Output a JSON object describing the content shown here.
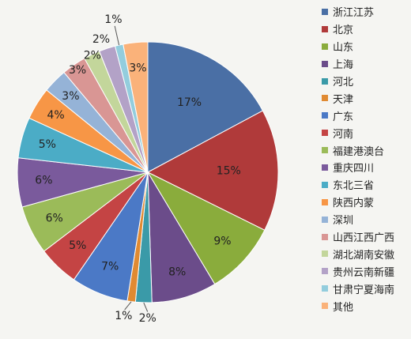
{
  "chart_data": {
    "type": "pie",
    "start_angle_deg": 0,
    "direction": "clockwise",
    "legend_position": "right",
    "slices": [
      {
        "label": "浙江江苏",
        "value": 17,
        "value_label": "17%",
        "color": "#4a6fa5"
      },
      {
        "label": "北京",
        "value": 15,
        "value_label": "15%",
        "color": "#b03a3a"
      },
      {
        "label": "山东",
        "value": 9,
        "value_label": "9%",
        "color": "#8aac3c"
      },
      {
        "label": "上海",
        "value": 8,
        "value_label": "8%",
        "color": "#6b4c8a"
      },
      {
        "label": "河北",
        "value": 2,
        "value_label": "2%",
        "color": "#3a9aa8"
      },
      {
        "label": "天津",
        "value": 1,
        "value_label": "1%",
        "color": "#e08a32"
      },
      {
        "label": "广东",
        "value": 7,
        "value_label": "7%",
        "color": "#4b79c6"
      },
      {
        "label": "河南",
        "value": 5,
        "value_label": "5%",
        "color": "#c44444"
      },
      {
        "label": "福建港澳台",
        "value": 6,
        "value_label": "6%",
        "color": "#9bbb59"
      },
      {
        "label": "重庆四川",
        "value": 6,
        "value_label": "6%",
        "color": "#7a5a9c"
      },
      {
        "label": "东北三省",
        "value": 5,
        "value_label": "5%",
        "color": "#4bacc6"
      },
      {
        "label": "陕西内蒙",
        "value": 4,
        "value_label": "4%",
        "color": "#f79646"
      },
      {
        "label": "深圳",
        "value": 3,
        "value_label": "3%",
        "color": "#95b3d7"
      },
      {
        "label": "山西江西广西",
        "value": 3,
        "value_label": "3%",
        "color": "#d99694"
      },
      {
        "label": "湖北湖南安徽",
        "value": 2,
        "value_label": "2%",
        "color": "#c3d69b"
      },
      {
        "label": "贵州云南新疆",
        "value": 2,
        "value_label": "2%",
        "color": "#b3a2c7"
      },
      {
        "label": "甘肃宁夏海南",
        "value": 1,
        "value_label": "1%",
        "color": "#93cddd"
      },
      {
        "label": "其他",
        "value": 3,
        "value_label": "3%",
        "color": "#fab27a"
      }
    ]
  }
}
